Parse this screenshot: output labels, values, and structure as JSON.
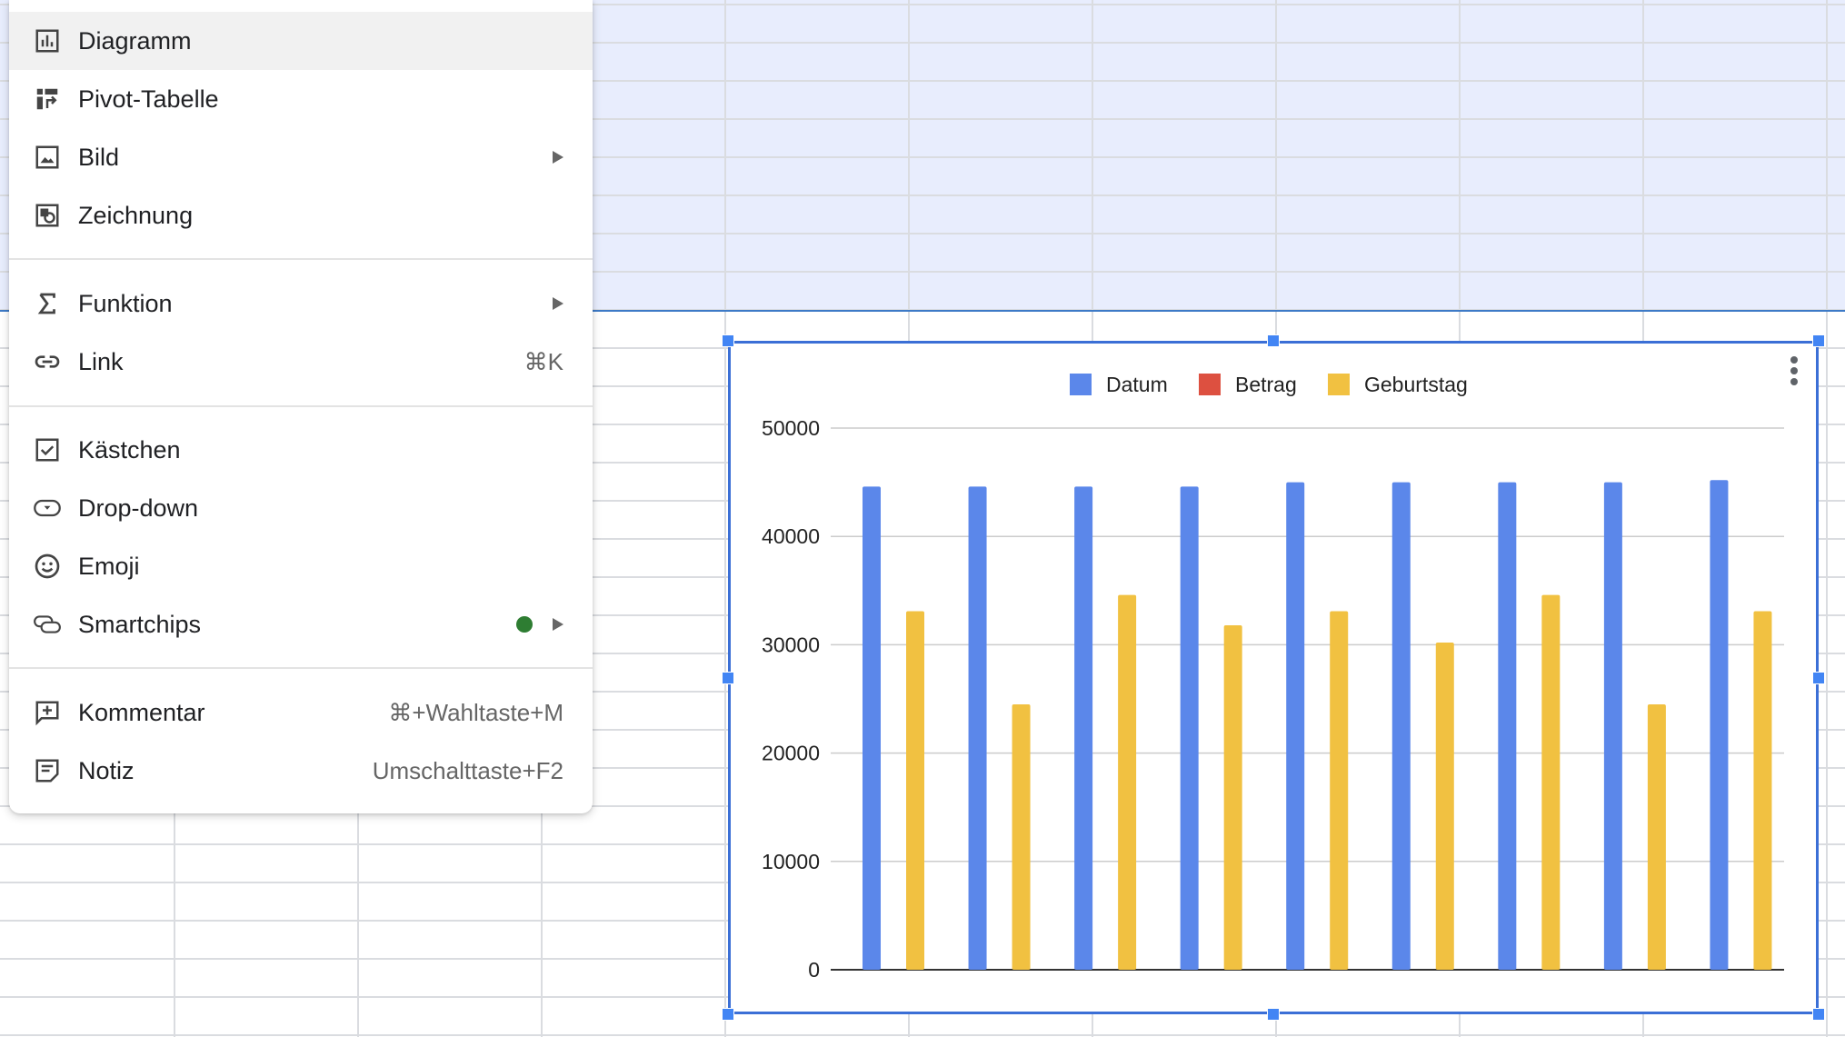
{
  "menu": {
    "items": [
      {
        "id": "diagramm",
        "label": "Diagramm",
        "icon": "bar-chart-icon",
        "shortcut": "",
        "submenu": false,
        "hover": true
      },
      {
        "id": "pivot-tabelle",
        "label": "Pivot-Tabelle",
        "icon": "pivot-table-icon",
        "shortcut": "",
        "submenu": false
      },
      {
        "id": "bild",
        "label": "Bild",
        "icon": "image-icon",
        "shortcut": "",
        "submenu": true
      },
      {
        "id": "zeichnung",
        "label": "Zeichnung",
        "icon": "drawing-icon",
        "shortcut": "",
        "submenu": false
      },
      {
        "id": "funktion",
        "label": "Funktion",
        "icon": "sigma-icon",
        "shortcut": "",
        "submenu": true
      },
      {
        "id": "link",
        "label": "Link",
        "icon": "link-icon",
        "shortcut": "⌘K",
        "submenu": false
      },
      {
        "id": "kaestchen",
        "label": "Kästchen",
        "icon": "checkbox-icon",
        "shortcut": "",
        "submenu": false
      },
      {
        "id": "drop-down",
        "label": "Drop-down",
        "icon": "dropdown-icon",
        "shortcut": "",
        "submenu": false
      },
      {
        "id": "emoji",
        "label": "Emoji",
        "icon": "emoji-icon",
        "shortcut": "",
        "submenu": false
      },
      {
        "id": "smartchips",
        "label": "Smartchips",
        "icon": "smartchips-icon",
        "shortcut": "",
        "submenu": true,
        "new_badge": true
      },
      {
        "id": "kommentar",
        "label": "Kommentar",
        "icon": "add-comment-icon",
        "shortcut": "⌘+Wahltaste+M",
        "submenu": false
      },
      {
        "id": "notiz",
        "label": "Notiz",
        "icon": "note-icon",
        "shortcut": "Umschalttaste+F2",
        "submenu": false
      }
    ]
  },
  "colors": {
    "datum": "#5b87ea",
    "betrag": "#dd5040",
    "geburtstag": "#f1c141",
    "selection": "#3b6fd6",
    "highlight": "#e8edfd",
    "badge": "#2e7d32"
  },
  "chart_data": {
    "type": "bar",
    "categories": [
      "",
      "",
      "",
      "",
      "",
      "",
      "",
      "",
      ""
    ],
    "series": [
      {
        "name": "Datum",
        "values": [
          44600,
          44600,
          44600,
          44600,
          45000,
          45000,
          45000,
          45000,
          45200
        ]
      },
      {
        "name": "Betrag",
        "values": [
          0,
          0,
          0,
          0,
          0,
          0,
          0,
          0,
          0
        ]
      },
      {
        "name": "Geburtstag",
        "values": [
          33100,
          24500,
          34600,
          31800,
          33100,
          30200,
          34600,
          24500,
          33100
        ]
      }
    ],
    "yticks": [
      0,
      10000,
      20000,
      30000,
      40000,
      50000
    ],
    "ylim": [
      0,
      50000
    ],
    "legend": "top",
    "grid": true
  }
}
